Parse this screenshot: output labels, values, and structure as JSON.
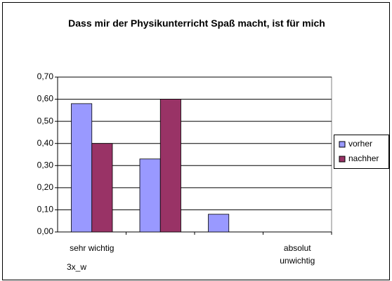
{
  "chart_data": {
    "type": "bar",
    "title": "Dass mir der Physikunterricht Spaß macht, ist für mich",
    "categories": [
      "sehr wichtig",
      null,
      null,
      "absolut unwichtig"
    ],
    "series": [
      {
        "name": "vorher",
        "color": "#9999ff",
        "values": [
          0.58,
          0.33,
          0.08,
          0
        ]
      },
      {
        "name": "nachher",
        "color": "#993366",
        "values": [
          0.4,
          0.6,
          0,
          0
        ]
      }
    ],
    "ylim": [
      0,
      0.7
    ],
    "yticks": [
      {
        "value": 0,
        "label": "0,00"
      },
      {
        "value": 0.1,
        "label": "0,10"
      },
      {
        "value": 0.2,
        "label": "0,20"
      },
      {
        "value": 0.3,
        "label": "0,30"
      },
      {
        "value": 0.4,
        "label": "0,40"
      },
      {
        "value": 0.5,
        "label": "0,50"
      },
      {
        "value": 0.6,
        "label": "0,60"
      },
      {
        "value": 0.7,
        "label": "0,70"
      }
    ],
    "grid": true,
    "legend": "right",
    "annotation": "3x_w"
  }
}
